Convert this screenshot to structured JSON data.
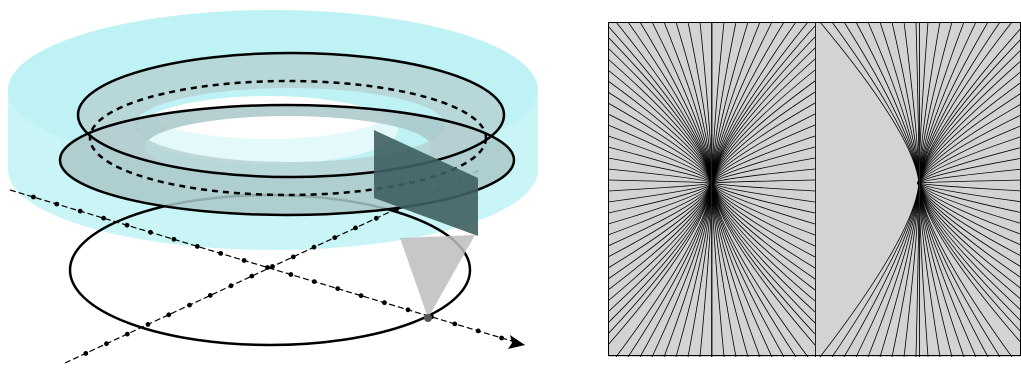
{
  "figure": {
    "left_panel": {
      "subject": "torus-band-section-above-circle",
      "colors": {
        "cylinder_fill": "#bff3f5",
        "cylinder_top": "#b8f1f3",
        "band_fill": "#a9c7c9",
        "section_plane": "#3e5f61",
        "projection_cone": "#bdbdbd",
        "stroke": "#000000"
      },
      "axis_markers": "dots"
    },
    "right_panel": {
      "subject": "field-lines-two-sources",
      "colors": {
        "background": "#d3d3d3",
        "lines": "#000000",
        "frame": "#000000"
      },
      "vertical_dividers": 4,
      "source_count": 2
    }
  }
}
